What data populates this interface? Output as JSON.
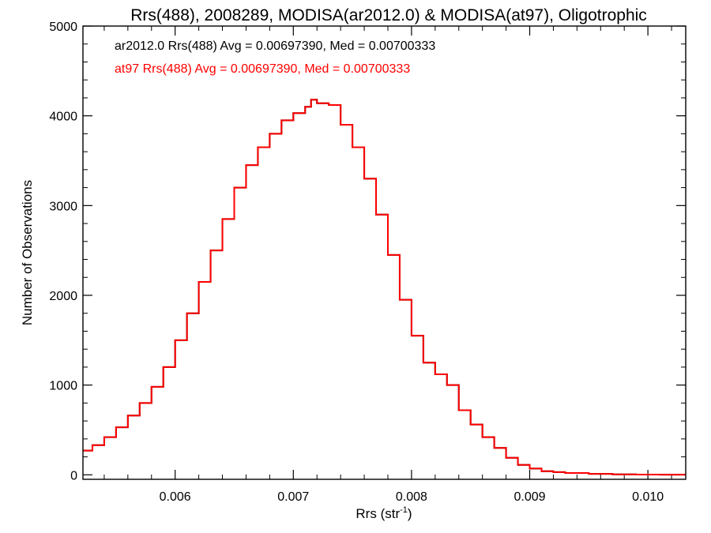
{
  "chart_data": {
    "type": "line",
    "title": "Rrs(488), 2008289, MODISA(ar2012.0) & MODISA(at97), Oligotrophic",
    "xlabel": "Rrs (str",
    "xlabel_sup": "-1",
    "xlabel_close": ")",
    "ylabel": "Number of Observations",
    "xlim": [
      0.00522,
      0.01032
    ],
    "ylim": [
      -50,
      5000
    ],
    "x_ticks": [
      0.006,
      0.007,
      0.008,
      0.009,
      0.01
    ],
    "x_tick_labels": [
      "0.006",
      "0.007",
      "0.008",
      "0.009",
      "0.010"
    ],
    "y_ticks": [
      0,
      1000,
      2000,
      3000,
      4000,
      5000
    ],
    "y_tick_labels": [
      "0",
      "1000",
      "2000",
      "3000",
      "4000",
      "5000"
    ],
    "annotations": [
      {
        "text": "ar2012.0 Rrs(488) Avg = 0.00697390, Med = 0.00700333",
        "color": "#000000"
      },
      {
        "text": "at97 Rrs(488) Avg = 0.00697390, Med = 0.00700333",
        "color": "#ff0000"
      }
    ],
    "series": [
      {
        "name": "ar2012.0",
        "color": "#000000",
        "x": [
          0.00522,
          0.0053,
          0.0054,
          0.0055,
          0.0056,
          0.0057,
          0.0058,
          0.0059,
          0.006,
          0.0061,
          0.0062,
          0.0063,
          0.0064,
          0.0065,
          0.0066,
          0.0067,
          0.0068,
          0.0069,
          0.007,
          0.0071,
          0.00715,
          0.0072,
          0.0073,
          0.0074,
          0.0075,
          0.0076,
          0.0077,
          0.0078,
          0.0079,
          0.008,
          0.0081,
          0.0082,
          0.0083,
          0.0084,
          0.0085,
          0.0086,
          0.0087,
          0.0088,
          0.0089,
          0.009,
          0.0091,
          0.0092,
          0.0093,
          0.0095,
          0.0097,
          0.0099,
          0.0101,
          0.01032
        ],
        "y": [
          270,
          330,
          420,
          530,
          660,
          800,
          980,
          1200,
          1500,
          1800,
          2150,
          2500,
          2850,
          3200,
          3450,
          3650,
          3800,
          3950,
          4030,
          4100,
          4180,
          4140,
          4120,
          3900,
          3650,
          3300,
          2900,
          2450,
          1950,
          1550,
          1250,
          1120,
          1000,
          720,
          560,
          420,
          300,
          190,
          110,
          70,
          40,
          30,
          20,
          10,
          5,
          3,
          2,
          2
        ]
      },
      {
        "name": "at97",
        "color": "#ff0000",
        "x": [
          0.00522,
          0.0053,
          0.0054,
          0.0055,
          0.0056,
          0.0057,
          0.0058,
          0.0059,
          0.006,
          0.0061,
          0.0062,
          0.0063,
          0.0064,
          0.0065,
          0.0066,
          0.0067,
          0.0068,
          0.0069,
          0.007,
          0.0071,
          0.00715,
          0.0072,
          0.0073,
          0.0074,
          0.0075,
          0.0076,
          0.0077,
          0.0078,
          0.0079,
          0.008,
          0.0081,
          0.0082,
          0.0083,
          0.0084,
          0.0085,
          0.0086,
          0.0087,
          0.0088,
          0.0089,
          0.009,
          0.0091,
          0.0092,
          0.0093,
          0.0095,
          0.0097,
          0.0099,
          0.0101,
          0.01032
        ],
        "y": [
          270,
          330,
          420,
          530,
          660,
          800,
          980,
          1200,
          1500,
          1800,
          2150,
          2500,
          2850,
          3200,
          3450,
          3650,
          3800,
          3950,
          4030,
          4100,
          4180,
          4140,
          4120,
          3900,
          3650,
          3300,
          2900,
          2450,
          1950,
          1550,
          1250,
          1120,
          1000,
          720,
          560,
          420,
          300,
          190,
          110,
          70,
          40,
          30,
          20,
          10,
          5,
          3,
          2,
          2
        ]
      }
    ]
  }
}
